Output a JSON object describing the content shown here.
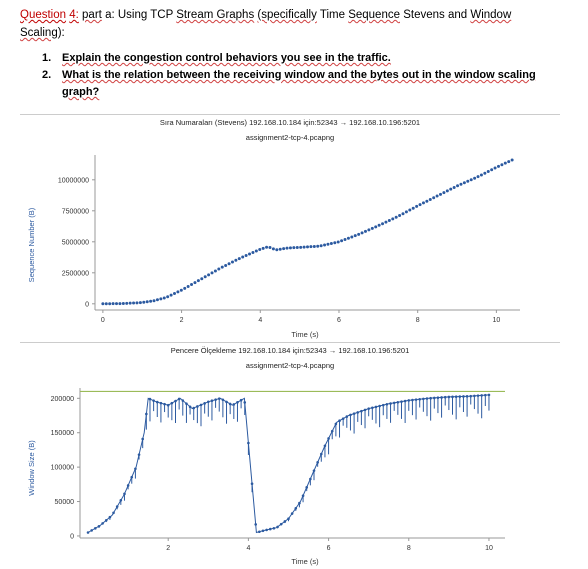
{
  "question": {
    "label": "Question",
    "number": "4:",
    "part": "part",
    "text_a": "a: Using TCP",
    "text_b": "Stream Graphs",
    "text_c": "(specifically",
    "text_d": "Time",
    "text_e": "Sequence",
    "text_f": "Stevens and",
    "text_g": "Window",
    "text_h": "Scaling",
    "text_i": "):"
  },
  "questions": [
    {
      "num": "1.",
      "text": "Explain the congestion control behaviors you see in the traffic."
    },
    {
      "num": "2.",
      "text": "What is the relation between the receiving window and the bytes out in the window scaling graph?"
    }
  ],
  "chart_data": [
    {
      "type": "scatter",
      "title": "Sıra Numaraları (Stevens) 192.168.10.184 için:52343 → 192.168.10.196:5201",
      "subtitle": "assignment2-tcp-4.pcapng",
      "xlabel": "Time (s)",
      "ylabel": "Sequence Number (B)",
      "xlim": [
        -0.2,
        10.6
      ],
      "ylim": [
        -500000,
        12000000
      ],
      "xticks": [
        "0",
        "2",
        "4",
        "6",
        "8",
        "10"
      ],
      "yticks": [
        "0",
        "2500000",
        "5000000",
        "7500000",
        "10000000"
      ],
      "x": [
        0,
        0.5,
        1.0,
        1.3,
        1.6,
        2.0,
        2.5,
        3.0,
        3.5,
        4.0,
        4.2,
        4.4,
        4.7,
        5.0,
        5.5,
        6.0,
        6.5,
        7.0,
        7.5,
        8.0,
        8.5,
        9.0,
        9.5,
        10.0,
        10.4
      ],
      "y": [
        0,
        20000,
        100000,
        250000,
        500000,
        1100000,
        2000000,
        2900000,
        3700000,
        4400000,
        4600000,
        4350000,
        4500000,
        4550000,
        4650000,
        5000000,
        5600000,
        6300000,
        7050000,
        7900000,
        8700000,
        9500000,
        10200000,
        11000000,
        11600000
      ],
      "grid": false
    },
    {
      "type": "line",
      "title": "Pencere Ölçekleme 192.168.10.184 için:52343 → 192.168.10.196:5201",
      "subtitle": "assignment2-tcp-4.pcapng",
      "xlabel": "Time (s)",
      "ylabel": "Window Size (B)",
      "xlim": [
        -0.2,
        10.4
      ],
      "ylim": [
        -3000,
        215000
      ],
      "xticks": [
        "2",
        "4",
        "6",
        "8",
        "10"
      ],
      "yticks": [
        "0",
        "50000",
        "100000",
        "150000",
        "200000"
      ],
      "receive_window": 210000,
      "x": [
        0,
        0.3,
        0.6,
        0.9,
        1.2,
        1.4,
        1.5,
        1.7,
        2.0,
        2.3,
        2.6,
        3.0,
        3.3,
        3.6,
        3.9,
        4.2,
        4.4,
        4.7,
        5.0,
        5.3,
        5.6,
        5.9,
        6.2,
        6.5,
        7.0,
        7.5,
        8.0,
        8.5,
        9.0,
        9.5,
        10.0
      ],
      "y": [
        5000,
        15000,
        30000,
        60000,
        100000,
        150000,
        200000,
        195000,
        190000,
        200000,
        185000,
        195000,
        200000,
        190000,
        200000,
        5000,
        8000,
        12000,
        25000,
        50000,
        90000,
        130000,
        165000,
        175000,
        185000,
        192000,
        197000,
        200000,
        202000,
        203000,
        205000
      ],
      "grid": false
    }
  ],
  "colors": {
    "series": "#2c5aa0",
    "window_line": "#9bbb59",
    "question_red": "#c00000"
  }
}
